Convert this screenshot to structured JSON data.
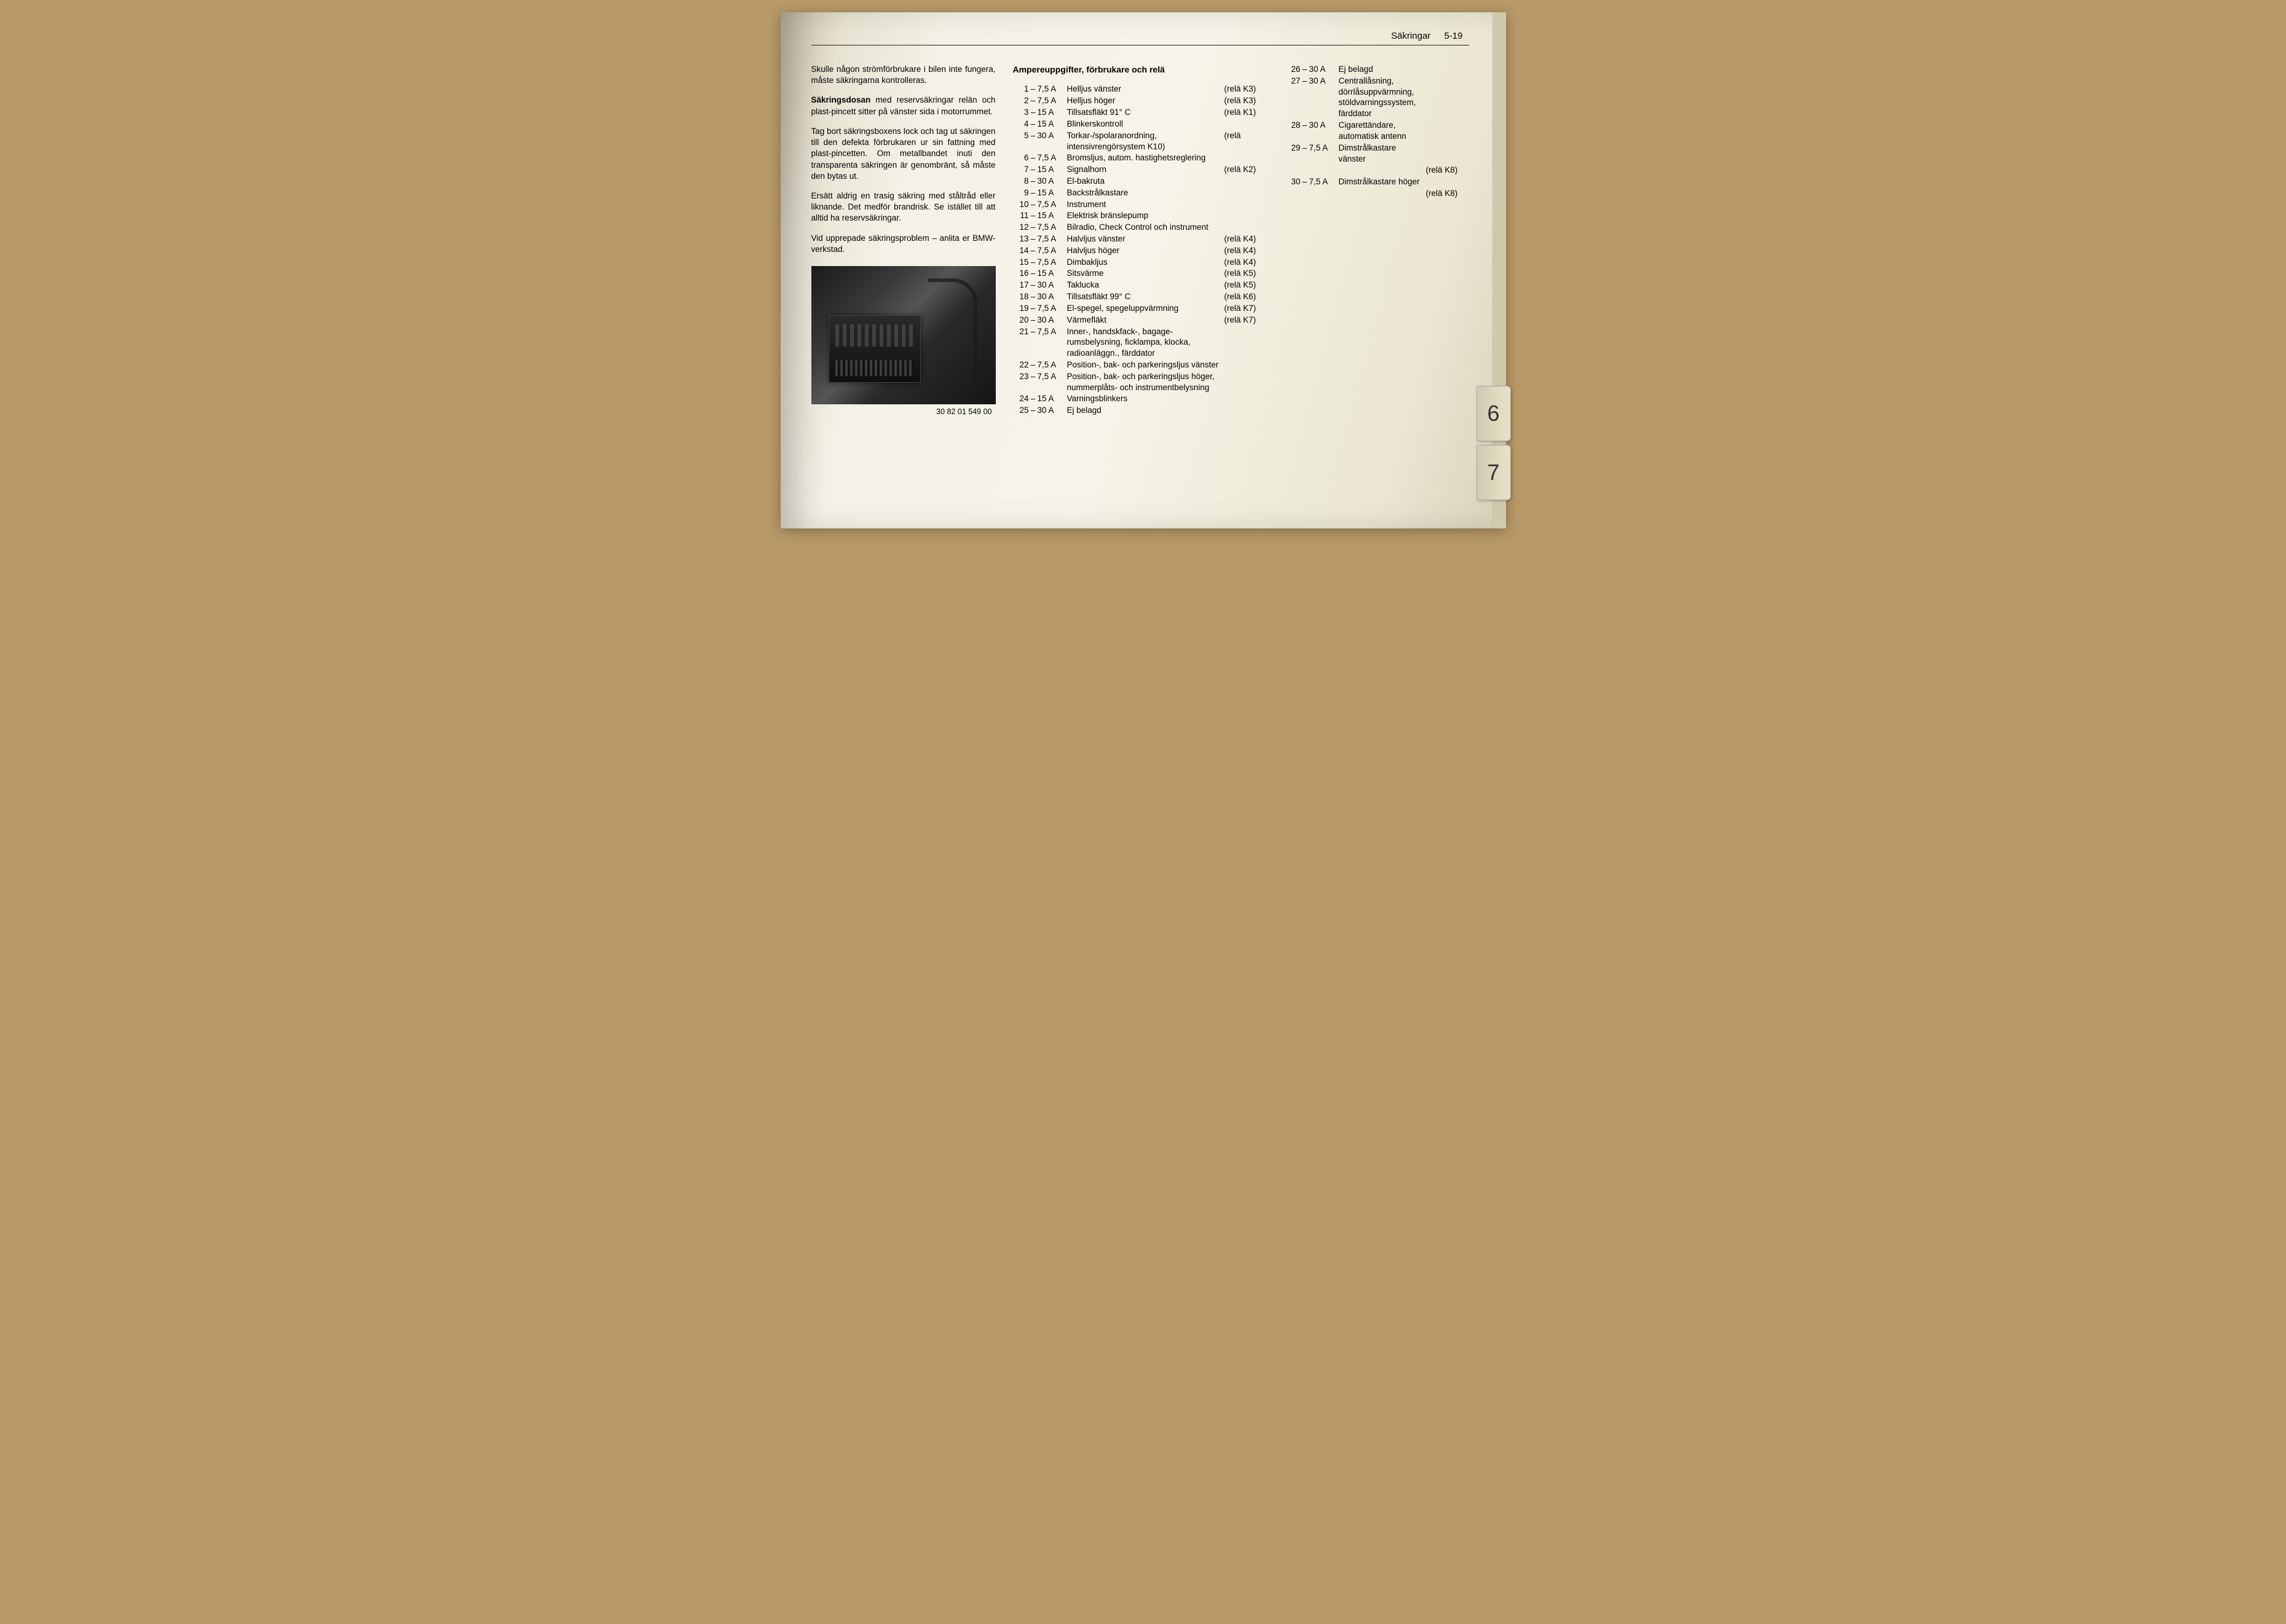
{
  "header": {
    "title": "Säkringar",
    "page": "5-19"
  },
  "intro": {
    "p1": "Skulle någon strömförbrukare i bilen inte fungera, måste säkringarna kontrolleras.",
    "p2a": "Säkringsdosan",
    "p2b": " med reservsäkringar re­län och plast-pincett sitter på vänster sida i motorrummet.",
    "p3": "Tag bort säkringsboxens lock och tag ut säkringen till den defekta förbrukaren ur sin fattning med plast-pincetten. Om me­tallbandet inuti den transparenta säkrin­gen är genombränt, så måste den bytas ut.",
    "p4": "Ersätt aldrig en trasig säkring med ståltråd eller liknande. Det medför brand­risk. Se istället till att alltid ha reservsäk­ringar.",
    "p5": "Vid upprepade säkringsproblem – anlita er BMW-verkstad."
  },
  "photo_caption": "30 82 01 549 00",
  "table_heading": "Ampereuppgifter, förbrukare och relä",
  "fuses_left": [
    {
      "n": "1",
      "a": "7,5 A",
      "d": "Helljus vänster",
      "r": "(relä K3)"
    },
    {
      "n": "2",
      "a": "7,5 A",
      "d": "Helljus höger",
      "r": "(relä K3)"
    },
    {
      "n": "3",
      "a": "15 A",
      "d": "Tillsatsfläkt 91° C",
      "r": "(relä K1)"
    },
    {
      "n": "4",
      "a": "15 A",
      "d": "Blinkerskontroll",
      "r": ""
    },
    {
      "n": "5",
      "a": "30 A",
      "d": "Torkar-/spolaranordning, intensivrengörsystem K10)",
      "r": "(relä"
    },
    {
      "n": "6",
      "a": "7,5 A",
      "d": "Bromsljus, autom. hastighets­reglering",
      "r": ""
    },
    {
      "n": "7",
      "a": "15 A",
      "d": "Signalhorn",
      "r": "(relä K2)"
    },
    {
      "n": "8",
      "a": "30 A",
      "d": "El-bakruta",
      "r": ""
    },
    {
      "n": "9",
      "a": "15 A",
      "d": "Backstrålkastare",
      "r": ""
    },
    {
      "n": "10",
      "a": "7,5 A",
      "d": "Instrument",
      "r": ""
    },
    {
      "n": "11",
      "a": "15 A",
      "d": "Elektrisk bränslepump",
      "r": ""
    },
    {
      "n": "12",
      "a": "7,5 A",
      "d": "Bilradio, Check Control och instrument",
      "r": ""
    },
    {
      "n": "13",
      "a": "7,5 A",
      "d": "Halvljus vänster",
      "r": "(relä K4)"
    },
    {
      "n": "14",
      "a": "7,5 A",
      "d": "Halvljus höger",
      "r": "(relä K4)"
    },
    {
      "n": "15",
      "a": "7,5 A",
      "d": "Dimbakljus",
      "r": "(relä K4)"
    },
    {
      "n": "16",
      "a": "15 A",
      "d": "Sitsvärme",
      "r": "(relä K5)"
    },
    {
      "n": "17",
      "a": "30 A",
      "d": "Taklucka",
      "r": "(relä K5)"
    },
    {
      "n": "18",
      "a": "30 A",
      "d": "Tillsatsfläkt 99° C",
      "r": "(relä K6)"
    },
    {
      "n": "19",
      "a": "7,5 A",
      "d": "El-spegel, spegeluppvärm­ning",
      "r": "(relä K7)"
    },
    {
      "n": "20",
      "a": "30 A",
      "d": "Värmefläkt",
      "r": "(relä K7)"
    },
    {
      "n": "21",
      "a": "7,5 A",
      "d": "Inner-, handskfack-, bagage­rumsbelysning, ficklampa, klocka, radioanläggn., färd­dator",
      "r": ""
    },
    {
      "n": "22",
      "a": "7,5 A",
      "d": "Position-, bak- och parke­ringsljus vänster",
      "r": ""
    },
    {
      "n": "23",
      "a": "7,5 A",
      "d": "Position-, bak- och parke­ringsljus höger, num­merplåts- och instrumentbe­lysning",
      "r": ""
    },
    {
      "n": "24",
      "a": "15 A",
      "d": "Varningsblinkers",
      "r": ""
    },
    {
      "n": "25",
      "a": "30 A",
      "d": "Ej belagd",
      "r": ""
    }
  ],
  "fuses_right": [
    {
      "n": "26",
      "a": "30 A",
      "d": "Ej belagd",
      "r": ""
    },
    {
      "n": "27",
      "a": "30 A",
      "d": "Centrallåsning, dörrlås­uppvärmning, stöldvarnings­system, färddator",
      "r": ""
    },
    {
      "n": "28",
      "a": "30 A",
      "d": "Cigarettändare, automatisk antenn",
      "r": ""
    },
    {
      "n": "29",
      "a": "7,5 A",
      "d": "Dimstrålkastare vänster",
      "r": "(relä K8)"
    },
    {
      "n": "30",
      "a": "7,5 A",
      "d": "Dimstrålkastare höger",
      "r": "(relä K8)"
    }
  ],
  "tabs": {
    "t1": "6",
    "t2": "7"
  },
  "colors": {
    "text": "#1a1a1a",
    "page_bg": "#f4f2e6",
    "desk": "#b89968"
  }
}
